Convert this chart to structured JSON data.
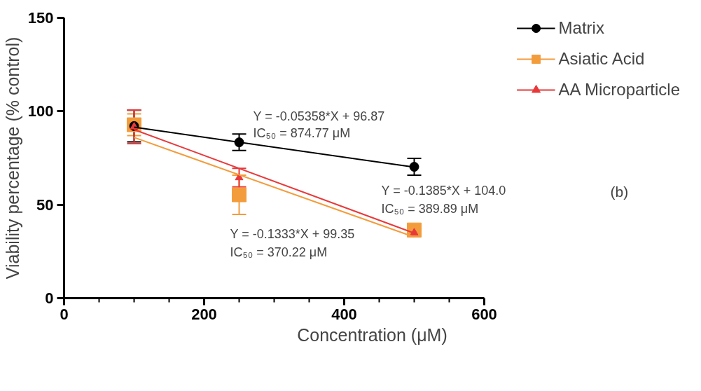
{
  "chart_data": {
    "type": "scatter",
    "xlabel": "Concentration (μM)",
    "ylabel": "Viability percentage (% control)",
    "xlim": [
      0,
      600
    ],
    "xticks": [
      0,
      200,
      400,
      600
    ],
    "ylim": [
      0,
      150
    ],
    "yticks": [
      0,
      50,
      100,
      150
    ],
    "grid": false,
    "legend": "top right",
    "series": [
      {
        "name": "Matrix",
        "marker": "circle",
        "color": "#000000",
        "x": [
          100,
          250,
          500
        ],
        "values": [
          92.1,
          83.4,
          70.3
        ],
        "errors": [
          8.5,
          4.4,
          4.5
        ]
      },
      {
        "type": "line",
        "color": "#000000",
        "x": [
          100,
          500
        ],
        "values": [
          91.5,
          70.1
        ]
      },
      {
        "name": "Asiatic Acid",
        "marker": "square",
        "color": "#f39c3c",
        "x": [
          100,
          250,
          500
        ],
        "values": [
          92.8,
          55.3,
          36.5
        ],
        "errors": [
          5.8,
          10.5,
          2
        ]
      },
      {
        "type": "line",
        "color": "#f39c3c",
        "x": [
          100,
          500
        ],
        "values": [
          86.0,
          32.7
        ]
      },
      {
        "name": "AA Microparticle",
        "marker": "triangle",
        "color": "#e8393a",
        "x": [
          100,
          250,
          500
        ],
        "values": [
          91.7,
          64.5,
          35
        ],
        "errors": [
          9,
          5,
          2
        ]
      },
      {
        "type": "line",
        "color": "#e8393a",
        "x": [
          100,
          500
        ],
        "values": [
          90.2,
          34.8
        ]
      }
    ],
    "annotations": [
      "Y = -0.05358*X + 96.87",
      "IC₅₀ = 874.77 μM",
      "Y = -0.1385*X + 104.0",
      "IC₅₀ = 389.89 μM",
      "Y = -0.1333*X + 99.35",
      "IC₅₀ = 370.22 μM",
      "(b)"
    ]
  }
}
